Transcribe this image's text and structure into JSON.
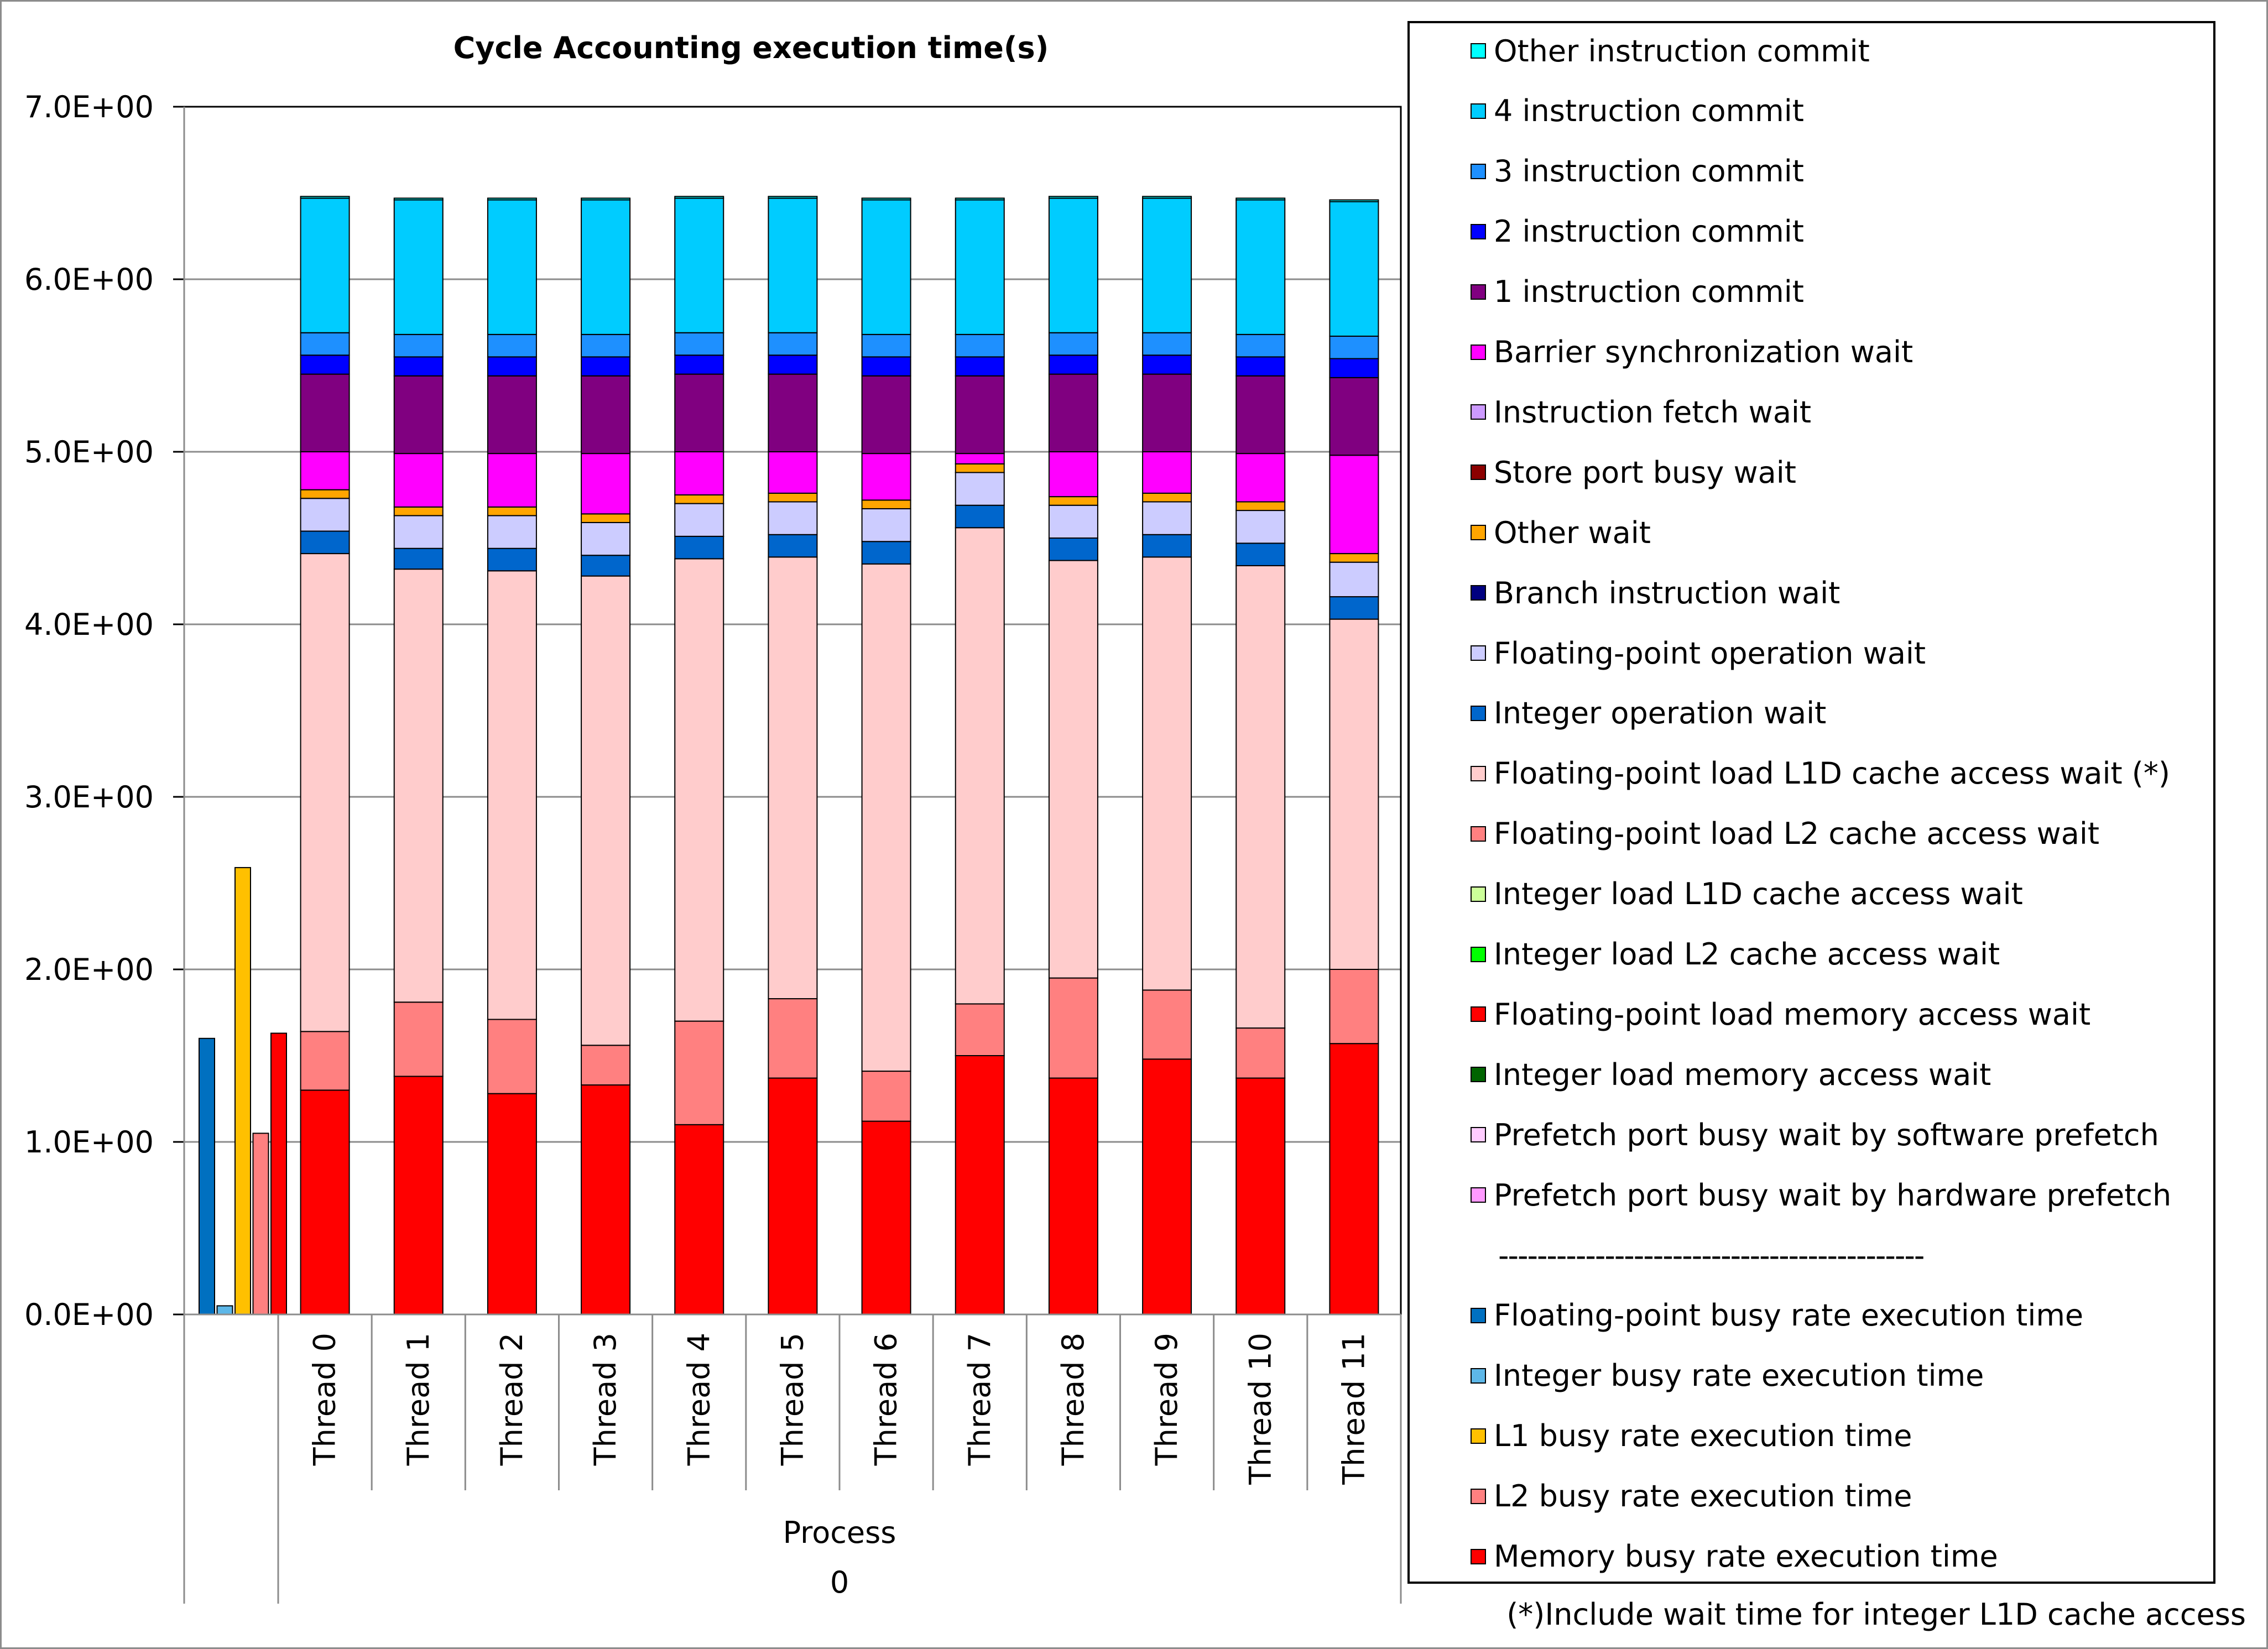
{
  "chart_data": {
    "type": "bar",
    "title": "Cycle Accounting execution time(s)",
    "ylim": [
      0,
      7
    ],
    "yticks": [
      "0.0E+00",
      "1.0E+00",
      "2.0E+00",
      "3.0E+00",
      "4.0E+00",
      "5.0E+00",
      "6.0E+00",
      "7.0E+00"
    ],
    "grid": true,
    "group_label": "Process",
    "group_value": "0",
    "legend_placement": "right",
    "categories": [
      "Thread 0",
      "Thread 1",
      "Thread 2",
      "Thread 3",
      "Thread 4",
      "Thread 5",
      "Thread 6",
      "Thread 7",
      "Thread 8",
      "Thread 9",
      "Thread 10",
      "Thread 11"
    ],
    "stacked_series": [
      {
        "name": "Memory busy rate execution time",
        "color": "#FF0000",
        "values": [
          1.3,
          1.38,
          1.28,
          1.33,
          1.1,
          1.37,
          1.12,
          1.5,
          1.37,
          1.48,
          1.37,
          1.57
        ]
      },
      {
        "name": "Floating-point load L2 cache access wait",
        "color": "#FF8080",
        "values": [
          0.34,
          0.43,
          0.43,
          0.23,
          0.6,
          0.46,
          0.29,
          0.3,
          0.58,
          0.4,
          0.29,
          0.43
        ]
      },
      {
        "name": "Floating-point load L1D cache access wait (*)",
        "color": "#FFCCCC",
        "values": [
          2.77,
          2.51,
          2.6,
          2.72,
          2.68,
          2.56,
          2.94,
          2.76,
          2.42,
          2.51,
          2.68,
          2.03
        ]
      },
      {
        "name": "Integer operation wait",
        "color": "#0066CC",
        "values": [
          0.13,
          0.12,
          0.13,
          0.12,
          0.13,
          0.13,
          0.13,
          0.13,
          0.13,
          0.13,
          0.13,
          0.13
        ]
      },
      {
        "name": "Floating-point operation wait",
        "color": "#CCCCFF",
        "values": [
          0.19,
          0.19,
          0.19,
          0.19,
          0.19,
          0.19,
          0.19,
          0.19,
          0.19,
          0.19,
          0.19,
          0.2
        ]
      },
      {
        "name": "Other wait",
        "color": "#FFA500",
        "values": [
          0.05,
          0.05,
          0.05,
          0.05,
          0.05,
          0.05,
          0.05,
          0.05,
          0.05,
          0.05,
          0.05,
          0.05
        ]
      },
      {
        "name": "Barrier synchronization wait",
        "color": "#FF00FF",
        "values": [
          0.22,
          0.31,
          0.31,
          0.35,
          0.25,
          0.24,
          0.27,
          0.06,
          0.26,
          0.24,
          0.28,
          0.57
        ]
      },
      {
        "name": "1 instruction commit",
        "color": "#800080",
        "values": [
          0.45,
          0.45,
          0.45,
          0.45,
          0.45,
          0.45,
          0.45,
          0.45,
          0.45,
          0.45,
          0.45,
          0.45
        ]
      },
      {
        "name": "2 instruction commit",
        "color": "#0000FF",
        "values": [
          0.11,
          0.11,
          0.11,
          0.11,
          0.11,
          0.11,
          0.11,
          0.11,
          0.11,
          0.11,
          0.11,
          0.11
        ]
      },
      {
        "name": "3 instruction commit",
        "color": "#1E90FF",
        "values": [
          0.13,
          0.13,
          0.13,
          0.13,
          0.13,
          0.13,
          0.13,
          0.13,
          0.13,
          0.13,
          0.13,
          0.13
        ]
      },
      {
        "name": "4 instruction commit",
        "color": "#00CCFF",
        "values": [
          0.78,
          0.78,
          0.78,
          0.78,
          0.78,
          0.78,
          0.78,
          0.78,
          0.78,
          0.78,
          0.78,
          0.78
        ]
      },
      {
        "name": "Other instruction commit",
        "color": "#00FFFF",
        "values": [
          0.01,
          0.01,
          0.01,
          0.01,
          0.01,
          0.01,
          0.01,
          0.01,
          0.01,
          0.01,
          0.01,
          0.01
        ]
      }
    ],
    "process_bars": [
      {
        "name": "Floating-point busy rate execution time",
        "color": "#0070C0",
        "value": 1.6
      },
      {
        "name": "Integer busy rate execution time",
        "color": "#5DB7E8",
        "value": 0.05
      },
      {
        "name": "L1 busy rate execution time",
        "color": "#FFC000",
        "value": 2.59
      },
      {
        "name": "L2 busy rate execution time",
        "color": "#FF8080",
        "value": 1.05
      },
      {
        "name": "Memory busy rate execution time",
        "color": "#FF0000",
        "value": 1.63
      }
    ],
    "footnote": "(*)Include wait time for integer L1D cache access"
  },
  "legend": {
    "items": [
      {
        "label": "Other instruction commit",
        "color": "#00FFFF"
      },
      {
        "label": "4 instruction commit",
        "color": "#00CCFF"
      },
      {
        "label": "3 instruction commit",
        "color": "#1E90FF"
      },
      {
        "label": "2 instruction commit",
        "color": "#0000FF"
      },
      {
        "label": "1 instruction commit",
        "color": "#800080"
      },
      {
        "label": "Barrier synchronization wait",
        "color": "#FF00FF"
      },
      {
        "label": "Instruction fetch wait",
        "color": "#CC99FF"
      },
      {
        "label": "Store port busy wait",
        "color": "#8B0000"
      },
      {
        "label": "Other wait",
        "color": "#FFA500"
      },
      {
        "label": "Branch instruction wait",
        "color": "#000080"
      },
      {
        "label": "Floating-point operation wait",
        "color": "#CCCCFF"
      },
      {
        "label": "Integer operation wait",
        "color": "#0066CC"
      },
      {
        "label": "Floating-point load L1D cache access wait (*)",
        "color": "#FFCCCC"
      },
      {
        "label": "Floating-point load L2 cache access wait",
        "color": "#FF8080"
      },
      {
        "label": "Integer load L1D cache access wait",
        "color": "#CCFF99"
      },
      {
        "label": "Integer load L2 cache access wait",
        "color": "#00FF00"
      },
      {
        "label": "Floating-point load memory access wait",
        "color": "#FF0000"
      },
      {
        "label": "Integer load memory access wait",
        "color": "#006400"
      },
      {
        "label": "Prefetch port busy wait by software prefetch",
        "color": "#FFCCFF"
      },
      {
        "label": "Prefetch port busy wait by hardware prefetch",
        "color": "#FF99FF"
      }
    ],
    "separator": "--------------------------------------------",
    "busy_items": [
      {
        "label": "Floating-point busy rate execution time",
        "color": "#0070C0"
      },
      {
        "label": "Integer busy rate execution time",
        "color": "#5DB7E8"
      },
      {
        "label": "L1 busy rate execution time",
        "color": "#FFC000"
      },
      {
        "label": "L2 busy rate execution time",
        "color": "#FF8080"
      },
      {
        "label": "Memory busy rate execution time",
        "color": "#FF0000"
      }
    ]
  }
}
